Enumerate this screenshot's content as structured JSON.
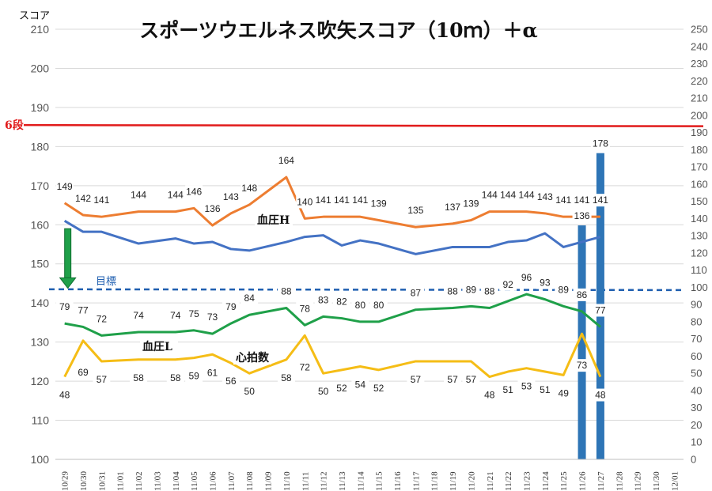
{
  "chart_data": {
    "type": "line",
    "title": "スポーツウエルネス吹矢スコア（10ｍ）＋α",
    "left_axis_title": "スコア",
    "left_ylim": [
      100,
      210
    ],
    "left_ticks": [
      100,
      110,
      120,
      130,
      140,
      150,
      160,
      170,
      180,
      190,
      200,
      210
    ],
    "right_ylim": [
      0,
      250
    ],
    "right_ticks": [
      0,
      10,
      20,
      30,
      40,
      50,
      60,
      70,
      80,
      90,
      100,
      110,
      120,
      130,
      140,
      150,
      160,
      170,
      180,
      190,
      200,
      210,
      220,
      230,
      240,
      250
    ],
    "categories": [
      "10/29",
      "10/30",
      "10/31",
      "11/01",
      "11/02",
      "11/03",
      "11/04",
      "11/05",
      "11/06",
      "11/07",
      "11/08",
      "11/09",
      "11/10",
      "11/11",
      "11/12",
      "11/13",
      "11/14",
      "11/15",
      "11/16",
      "11/17",
      "11/18",
      "11/19",
      "11/20",
      "11/21",
      "11/22",
      "11/23",
      "11/24",
      "11/25",
      "11/26",
      "11/27",
      "11/28",
      "11/29",
      "11/30",
      "12/01"
    ],
    "reference_line": {
      "label": "6段",
      "value": 185.5,
      "axis": "left",
      "color": "#e11b1b"
    },
    "target_line": {
      "label": "目標",
      "value": 143.5,
      "axis": "left",
      "color": "#1f5fb0"
    },
    "series": [
      {
        "name": "",
        "kind": "line",
        "axis": "left",
        "color": "#4472c4",
        "values": [
          161,
          158.2,
          158.2,
          null,
          155.2,
          null,
          156.5,
          155.2,
          155.6,
          153.8,
          153.4,
          null,
          155.6,
          156.9,
          157.3,
          154.7,
          156,
          155.2,
          null,
          152.5,
          null,
          154.3,
          154.3,
          154.3,
          155.6,
          156,
          157.8,
          154.3,
          null,
          156.9,
          null,
          null,
          null,
          null
        ]
      },
      {
        "name": "血圧H",
        "kind": "line",
        "axis": "right",
        "color": "#ed7d31",
        "values": [
          149,
          142,
          141,
          null,
          144,
          null,
          144,
          146,
          136,
          143,
          148,
          null,
          164,
          140,
          141,
          141,
          141,
          139,
          null,
          135,
          null,
          137,
          139,
          144,
          144,
          144,
          143,
          141,
          141,
          141,
          null,
          null,
          null,
          null
        ],
        "labels": [
          "149",
          "142",
          "141",
          null,
          "144",
          null,
          "144",
          "146",
          "136",
          "143",
          "148",
          null,
          "164",
          "140",
          "141",
          "141",
          "141",
          "139",
          null,
          "135",
          null,
          "137",
          "139",
          "144",
          "144",
          "144",
          "143",
          "141",
          "141",
          "141",
          null,
          null,
          null,
          null
        ]
      },
      {
        "name": "血圧L",
        "kind": "line",
        "axis": "right",
        "color": "#1fa049",
        "values": [
          79,
          77,
          72,
          null,
          74,
          null,
          74,
          75,
          73,
          79,
          84,
          null,
          88,
          78,
          83,
          82,
          80,
          80,
          null,
          87,
          null,
          88,
          89,
          88,
          92,
          96,
          93,
          89,
          86,
          77,
          null,
          null,
          null,
          null
        ],
        "labels": [
          "79",
          "77",
          "72",
          null,
          "74",
          null,
          "74",
          "75",
          "73",
          "79",
          "84",
          null,
          "88",
          "78",
          "83",
          "82",
          "80",
          "80",
          null,
          "87",
          null,
          "88",
          "89",
          "88",
          "92",
          "96",
          "93",
          "89",
          "86",
          "77",
          null,
          null,
          null,
          null
        ]
      },
      {
        "name": "心拍数",
        "kind": "line",
        "axis": "right",
        "color": "#f5bd16",
        "values": [
          48,
          69,
          57,
          null,
          58,
          null,
          58,
          59,
          61,
          56,
          50,
          null,
          58,
          72,
          50,
          52,
          54,
          52,
          null,
          57,
          null,
          57,
          57,
          48,
          51,
          53,
          51,
          49,
          73,
          48,
          null,
          null,
          null,
          null
        ],
        "labels": [
          "48",
          "69",
          "57",
          null,
          "58",
          null,
          "58",
          "59",
          "61",
          "56",
          "50",
          null,
          "58",
          "72",
          "50",
          "52",
          "54",
          "52",
          null,
          "57",
          null,
          "57",
          "57",
          "48",
          "51",
          "53",
          "51",
          "49",
          "73",
          "48",
          null,
          null,
          null,
          null
        ]
      },
      {
        "name": "",
        "kind": "bar",
        "axis": "right",
        "color": "#2e75b6",
        "values": [
          null,
          null,
          null,
          null,
          null,
          null,
          null,
          null,
          null,
          null,
          null,
          null,
          null,
          null,
          null,
          null,
          null,
          null,
          null,
          null,
          null,
          null,
          null,
          null,
          null,
          null,
          null,
          null,
          136,
          178,
          null,
          null,
          null,
          null
        ],
        "labels": [
          null,
          null,
          null,
          null,
          null,
          null,
          null,
          null,
          null,
          null,
          null,
          null,
          null,
          null,
          null,
          null,
          null,
          null,
          null,
          null,
          null,
          null,
          null,
          null,
          null,
          null,
          null,
          null,
          "136",
          "178",
          null,
          null,
          null,
          null
        ]
      }
    ],
    "annotation": {
      "kind": "down-arrow",
      "color": "#1fa049",
      "from_value": 159,
      "to_value": 144,
      "category_index": 0
    }
  }
}
